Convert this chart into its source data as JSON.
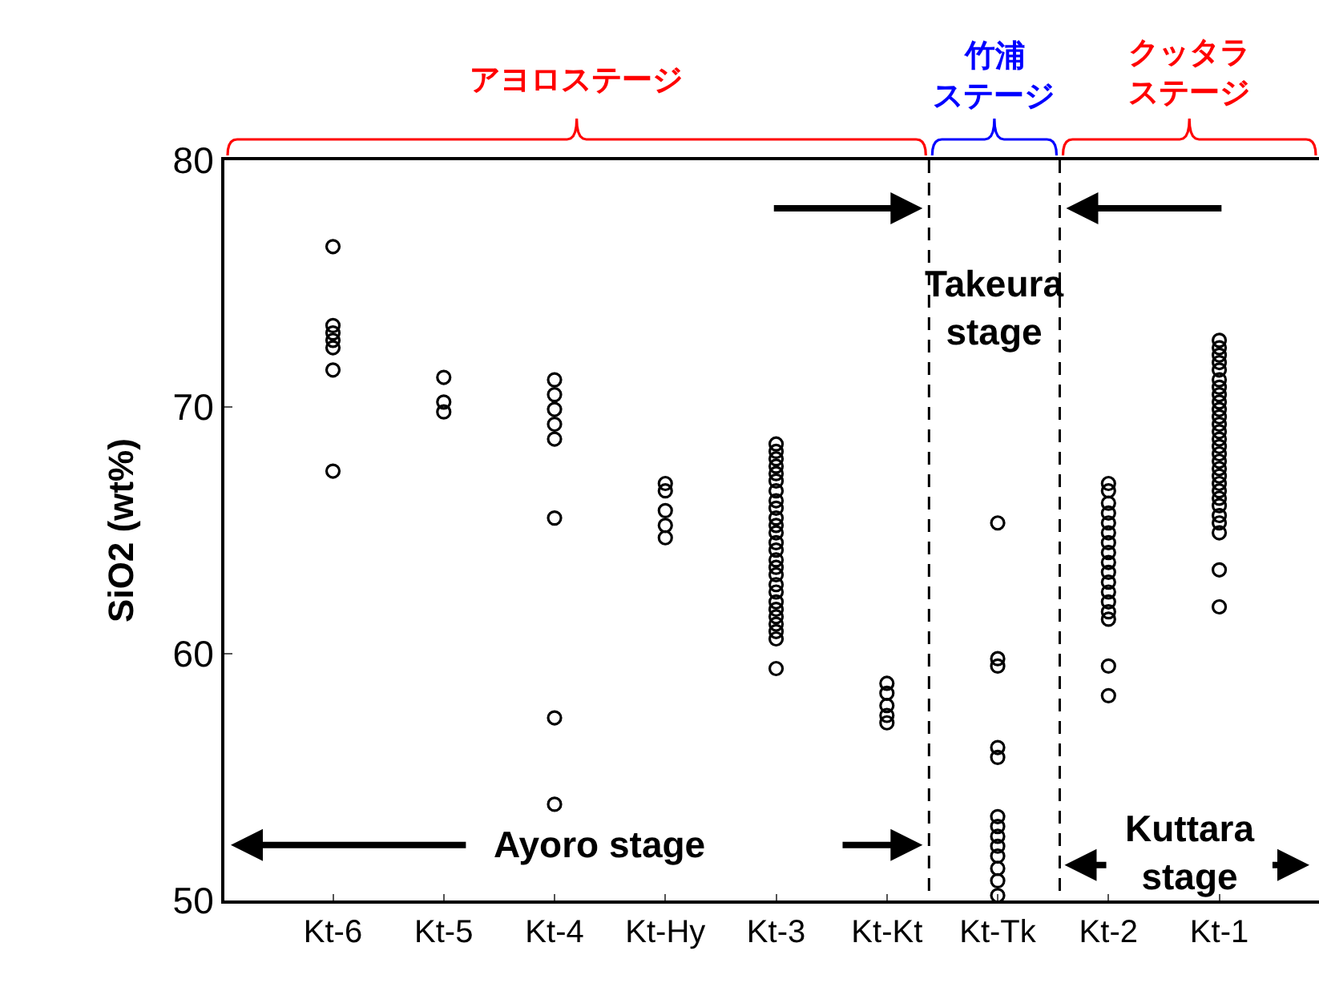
{
  "chart_data": {
    "type": "scatter",
    "ylabel": "SiO2 (wt%)",
    "categories": [
      "Kt-6",
      "Kt-5",
      "Kt-4",
      "Kt-Hy",
      "Kt-3",
      "Kt-Kt",
      "Kt-Tk",
      "Kt-2",
      "Kt-1"
    ],
    "series": [
      {
        "color": "#000000",
        "x": [
          "Kt-6",
          "Kt-6",
          "Kt-6",
          "Kt-6",
          "Kt-6",
          "Kt-6",
          "Kt-6",
          "Kt-5",
          "Kt-5",
          "Kt-5",
          "Kt-4",
          "Kt-4",
          "Kt-4",
          "Kt-4",
          "Kt-4",
          "Kt-4",
          "Kt-4",
          "Kt-4",
          "Kt-Hy",
          "Kt-Hy",
          "Kt-Hy",
          "Kt-Hy",
          "Kt-Hy",
          "Kt-3",
          "Kt-3",
          "Kt-3",
          "Kt-3",
          "Kt-3",
          "Kt-3",
          "Kt-3",
          "Kt-3",
          "Kt-3",
          "Kt-3",
          "Kt-3",
          "Kt-3",
          "Kt-3",
          "Kt-3",
          "Kt-3",
          "Kt-3",
          "Kt-3",
          "Kt-3",
          "Kt-3",
          "Kt-3",
          "Kt-3",
          "Kt-3",
          "Kt-3",
          "Kt-3",
          "Kt-3",
          "Kt-3",
          "Kt-Kt",
          "Kt-Kt",
          "Kt-Kt",
          "Kt-Kt",
          "Kt-Kt",
          "Kt-Tk",
          "Kt-Tk",
          "Kt-Tk",
          "Kt-Tk",
          "Kt-Tk",
          "Kt-Tk",
          "Kt-Tk",
          "Kt-Tk",
          "Kt-Tk",
          "Kt-Tk",
          "Kt-Tk",
          "Kt-Tk",
          "Kt-Tk",
          "Kt-2",
          "Kt-2",
          "Kt-2",
          "Kt-2",
          "Kt-2",
          "Kt-2",
          "Kt-2",
          "Kt-2",
          "Kt-2",
          "Kt-2",
          "Kt-2",
          "Kt-2",
          "Kt-2",
          "Kt-2",
          "Kt-2",
          "Kt-2",
          "Kt-2",
          "Kt-1",
          "Kt-1",
          "Kt-1",
          "Kt-1",
          "Kt-1",
          "Kt-1",
          "Kt-1",
          "Kt-1",
          "Kt-1",
          "Kt-1",
          "Kt-1",
          "Kt-1",
          "Kt-1",
          "Kt-1",
          "Kt-1",
          "Kt-1",
          "Kt-1",
          "Kt-1",
          "Kt-1",
          "Kt-1",
          "Kt-1",
          "Kt-1",
          "Kt-1",
          "Kt-1",
          "Kt-1",
          "Kt-1",
          "Kt-1",
          "Kt-1"
        ],
        "values": [
          76.5,
          73.3,
          73.0,
          72.7,
          72.4,
          71.5,
          67.4,
          71.2,
          70.2,
          69.8,
          71.1,
          70.5,
          69.9,
          69.3,
          68.7,
          65.5,
          57.4,
          53.9,
          66.9,
          66.6,
          65.8,
          65.2,
          64.7,
          68.5,
          68.2,
          67.9,
          67.6,
          67.3,
          67.0,
          66.6,
          66.2,
          65.9,
          65.5,
          65.2,
          64.9,
          64.5,
          64.2,
          63.8,
          63.5,
          63.2,
          62.8,
          62.5,
          62.1,
          61.8,
          61.5,
          61.2,
          60.9,
          60.6,
          59.4,
          58.8,
          58.4,
          57.9,
          57.5,
          57.2,
          65.3,
          59.8,
          59.5,
          56.2,
          55.8,
          53.4,
          53.0,
          52.6,
          52.2,
          51.8,
          51.3,
          50.8,
          50.2,
          66.9,
          66.6,
          66.1,
          65.7,
          65.3,
          64.9,
          64.5,
          64.1,
          63.7,
          63.3,
          62.9,
          62.5,
          62.1,
          61.7,
          61.4,
          59.5,
          58.3,
          72.7,
          72.4,
          72.1,
          71.8,
          71.5,
          71.1,
          70.8,
          70.5,
          70.2,
          69.9,
          69.6,
          69.3,
          69.0,
          68.7,
          68.4,
          68.1,
          67.8,
          67.5,
          67.2,
          66.9,
          66.6,
          66.3,
          66.0,
          65.6,
          65.3,
          64.9,
          63.4,
          61.9
        ]
      }
    ],
    "ylim": [
      50,
      80
    ],
    "yticks": [
      50,
      60,
      70,
      80
    ],
    "marker": "circle",
    "grid": false,
    "annotations": [
      "アヨロステージ",
      "竹浦",
      "ステージ",
      "クッタラ",
      "ステージ",
      "Ayoro stage",
      "Takeura\nstage",
      "Kuttara\nstage"
    ]
  }
}
